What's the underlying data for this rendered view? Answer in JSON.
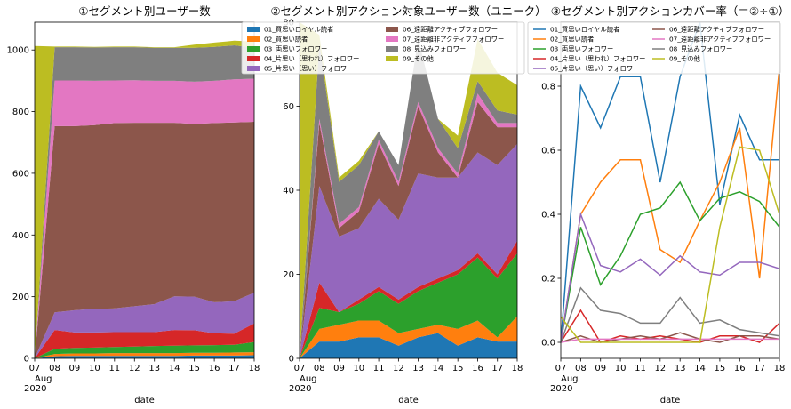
{
  "chart_data": [
    {
      "type": "area",
      "stacked": true,
      "title": "①セグメント別ユーザー数",
      "xlabel": "date",
      "ylabel": "",
      "x": [
        "07",
        "08",
        "09",
        "10",
        "11",
        "12",
        "13",
        "14",
        "15",
        "16",
        "17",
        "18"
      ],
      "x_month_label": "Aug",
      "x_year_label": "2020",
      "ylim": [
        0,
        1090
      ],
      "yticks": [
        0,
        200,
        400,
        600,
        800,
        1000
      ],
      "legend": "none",
      "series": [
        {
          "name": "01_買思いロイヤル読者",
          "color": "#1f77b4",
          "values": [
            0,
            7,
            8,
            8,
            8,
            8,
            8,
            8,
            9,
            9,
            9,
            10
          ]
        },
        {
          "name": "02_買思い読者",
          "color": "#ff7f0e",
          "values": [
            0,
            7,
            8,
            8,
            9,
            9,
            9,
            9,
            9,
            9,
            10,
            10
          ]
        },
        {
          "name": "03_両思いフォロワー",
          "color": "#2ca02c",
          "values": [
            0,
            17,
            18,
            19,
            20,
            21,
            23,
            24,
            24,
            25,
            25,
            33
          ]
        },
        {
          "name": "04_片思い（思われ）フォロワー",
          "color": "#d62728",
          "values": [
            0,
            61,
            50,
            49,
            48,
            47,
            45,
            51,
            49,
            38,
            36,
            60
          ]
        },
        {
          "name": "05_片思い（思い）フォロワー",
          "color": "#9467bd",
          "values": [
            0,
            57,
            72,
            77,
            77,
            84,
            91,
            109,
            109,
            101,
            105,
            100
          ]
        },
        {
          "name": "06_遠距離アクティブフォロワー",
          "color": "#8c564b",
          "values": [
            0,
            604,
            597,
            595,
            601,
            595,
            588,
            563,
            560,
            581,
            580,
            554
          ]
        },
        {
          "name": "07_遠距離非アクティブフォロワー",
          "color": "#e377c2",
          "values": [
            0,
            148,
            148,
            144,
            138,
            138,
            136,
            136,
            137,
            137,
            140,
            140
          ]
        },
        {
          "name": "08_見込みフォロワー",
          "color": "#7f7f7f",
          "values": [
            0,
            108,
            108,
            108,
            108,
            107,
            107,
            107,
            110,
            110,
            110,
            100
          ]
        },
        {
          "name": "09_その他",
          "color": "#bcbd22",
          "values": [
            1013,
            2,
            2,
            2,
            2,
            2,
            2,
            2,
            10,
            14,
            15,
            20
          ]
        }
      ]
    },
    {
      "type": "area",
      "stacked": true,
      "title": "②セグメント別アクション対象ユーザー数（ユニーク）",
      "xlabel": "date",
      "ylabel": "",
      "x": [
        "07",
        "08",
        "09",
        "10",
        "11",
        "12",
        "13",
        "14",
        "15",
        "16",
        "17",
        "18"
      ],
      "x_month_label": "Aug",
      "x_year_label": "2020",
      "ylim": [
        0,
        80
      ],
      "yticks": [
        0,
        20,
        40,
        60,
        80
      ],
      "legend": "top",
      "series": [
        {
          "name": "01_買思いロイヤル読者",
          "color": "#1f77b4",
          "values": [
            0,
            4,
            4,
            5,
            5,
            3,
            5,
            6,
            3,
            5,
            4,
            4
          ]
        },
        {
          "name": "02_買思い読者",
          "color": "#ff7f0e",
          "values": [
            0,
            3,
            4,
            4,
            4,
            3,
            2,
            2,
            4,
            4,
            1,
            6
          ]
        },
        {
          "name": "03_両思いフォロワー",
          "color": "#2ca02c",
          "values": [
            0,
            5,
            3,
            4,
            7,
            7,
            9,
            10,
            13,
            15,
            14,
            15
          ]
        },
        {
          "name": "04_片思い（思われ）フォロワー",
          "color": "#d62728",
          "values": [
            0,
            6,
            0,
            1,
            1,
            1,
            1,
            1,
            1,
            1,
            1,
            3
          ]
        },
        {
          "name": "05_片思い（思い）フォロワー",
          "color": "#9467bd",
          "values": [
            0,
            23,
            18,
            17,
            21,
            19,
            27,
            24,
            22,
            24,
            26,
            23
          ]
        },
        {
          "name": "06_遠距離アクティブフォロワー",
          "color": "#8c564b",
          "values": [
            0,
            15,
            2,
            4,
            13,
            8,
            16,
            6,
            0,
            12,
            9,
            4
          ]
        },
        {
          "name": "07_遠距離非アクティブフォロワー",
          "color": "#e377c2",
          "values": [
            0,
            1,
            1,
            1,
            1,
            1,
            1,
            1,
            1,
            2,
            1,
            1
          ]
        },
        {
          "name": "08_見込みフォロワー",
          "color": "#7f7f7f",
          "values": [
            0,
            18,
            10,
            10,
            2,
            4,
            15,
            7,
            6,
            3,
            3,
            2
          ]
        },
        {
          "name": "09_その他",
          "color": "#bcbd22",
          "values": [
            80,
            2,
            1,
            1,
            0,
            0,
            0,
            0,
            3,
            10,
            9,
            7
          ]
        }
      ]
    },
    {
      "type": "line",
      "title": "③セグメント別アクションカバー率（＝②÷①）",
      "xlabel": "date",
      "ylabel": "",
      "x": [
        "07",
        "08",
        "09",
        "10",
        "11",
        "12",
        "13",
        "14",
        "15",
        "16",
        "17",
        "18"
      ],
      "x_month_label": "Aug",
      "x_year_label": "2020",
      "ylim": [
        -0.05,
        1.0
      ],
      "yticks": [
        0.0,
        0.2,
        0.4,
        0.6,
        0.8
      ],
      "legend": "top",
      "series": [
        {
          "name": "01_買思いロイヤル読者",
          "color": "#1f77b4",
          "values": [
            0.0,
            0.8,
            0.67,
            0.83,
            0.83,
            0.5,
            0.83,
            1.0,
            0.43,
            0.71,
            0.57,
            0.57
          ]
        },
        {
          "name": "02_買思い読者",
          "color": "#ff7f0e",
          "values": [
            0.0,
            0.4,
            0.5,
            0.57,
            0.57,
            0.29,
            0.25,
            0.38,
            0.5,
            0.67,
            0.2,
            0.86
          ]
        },
        {
          "name": "03_両思いフォロワー",
          "color": "#2ca02c",
          "values": [
            0.0,
            0.36,
            0.18,
            0.27,
            0.4,
            0.42,
            0.5,
            0.38,
            0.45,
            0.47,
            0.44,
            0.36
          ]
        },
        {
          "name": "04_片思い（思われ）フォロワー",
          "color": "#d62728",
          "values": [
            0.0,
            0.1,
            0.0,
            0.02,
            0.01,
            0.02,
            0.01,
            0.0,
            0.02,
            0.02,
            0.0,
            0.06
          ]
        },
        {
          "name": "05_片思い（思い）フォロワー",
          "color": "#9467bd",
          "values": [
            0.0,
            0.4,
            0.24,
            0.22,
            0.26,
            0.21,
            0.27,
            0.22,
            0.21,
            0.25,
            0.25,
            0.23
          ]
        },
        {
          "name": "06_遠距離アクティブフォロワー",
          "color": "#8c564b",
          "values": [
            0.0,
            0.02,
            0.0,
            0.01,
            0.02,
            0.01,
            0.03,
            0.01,
            0.0,
            0.02,
            0.02,
            0.01
          ]
        },
        {
          "name": "07_遠距離非アクティブフォロワー",
          "color": "#e377c2",
          "values": [
            0.0,
            0.01,
            0.01,
            0.01,
            0.01,
            0.01,
            0.01,
            0.01,
            0.01,
            0.01,
            0.01,
            0.01
          ]
        },
        {
          "name": "08_見込みフォロワー",
          "color": "#7f7f7f",
          "values": [
            0.0,
            0.17,
            0.1,
            0.09,
            0.06,
            0.06,
            0.14,
            0.06,
            0.07,
            0.04,
            0.03,
            0.02
          ]
        },
        {
          "name": "09_その他",
          "color": "#bcbd22",
          "values": [
            0.08,
            0.0,
            0.0,
            0.0,
            0.0,
            0.0,
            0.0,
            0.0,
            0.36,
            0.61,
            0.6,
            0.4
          ]
        }
      ]
    }
  ]
}
